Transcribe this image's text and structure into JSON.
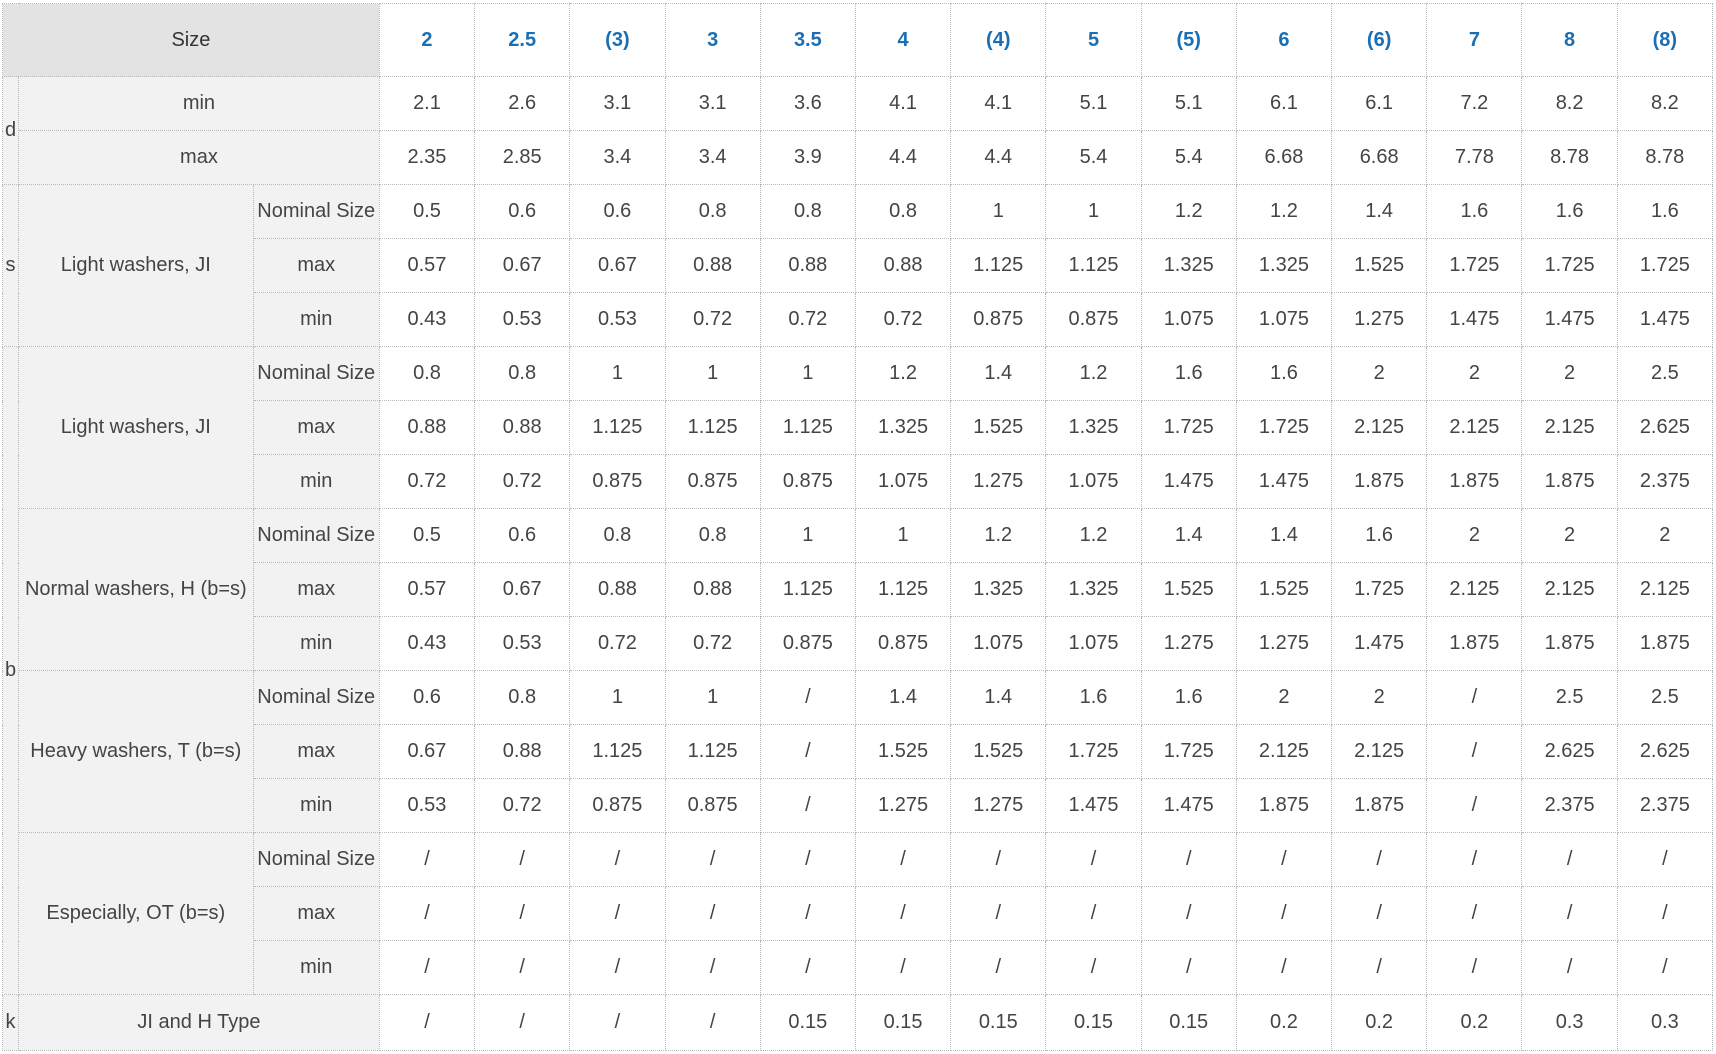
{
  "header": {
    "size_label": "Size",
    "columns": [
      "2",
      "2.5",
      "(3)",
      "3",
      "3.5",
      "4",
      "(4)",
      "5",
      "(5)",
      "6",
      "(6)",
      "7",
      "8",
      "(8)"
    ]
  },
  "d": {
    "symbol": "d",
    "rows": [
      {
        "label": "min",
        "values": [
          "2.1",
          "2.6",
          "3.1",
          "3.1",
          "3.6",
          "4.1",
          "4.1",
          "5.1",
          "5.1",
          "6.1",
          "6.1",
          "7.2",
          "8.2",
          "8.2"
        ]
      },
      {
        "label": "max",
        "values": [
          "2.35",
          "2.85",
          "3.4",
          "3.4",
          "3.9",
          "4.4",
          "4.4",
          "5.4",
          "5.4",
          "6.68",
          "6.68",
          "7.78",
          "8.78",
          "8.78"
        ]
      }
    ]
  },
  "s": {
    "symbol": "s",
    "group": "Light washers, JI",
    "rows": [
      {
        "label": "Nominal Size",
        "values": [
          "0.5",
          "0.6",
          "0.6",
          "0.8",
          "0.8",
          "0.8",
          "1",
          "1",
          "1.2",
          "1.2",
          "1.4",
          "1.6",
          "1.6",
          "1.6"
        ]
      },
      {
        "label": "max",
        "values": [
          "0.57",
          "0.67",
          "0.67",
          "0.88",
          "0.88",
          "0.88",
          "1.125",
          "1.125",
          "1.325",
          "1.325",
          "1.525",
          "1.725",
          "1.725",
          "1.725"
        ]
      },
      {
        "label": "min",
        "values": [
          "0.43",
          "0.53",
          "0.53",
          "0.72",
          "0.72",
          "0.72",
          "0.875",
          "0.875",
          "1.075",
          "1.075",
          "1.275",
          "1.475",
          "1.475",
          "1.475"
        ]
      }
    ]
  },
  "b": {
    "symbol": "b",
    "groups": [
      {
        "label": "Light washers, JI",
        "rows": [
          {
            "label": "Nominal Size",
            "values": [
              "0.8",
              "0.8",
              "1",
              "1",
              "1",
              "1.2",
              "1.4",
              "1.2",
              "1.6",
              "1.6",
              "2",
              "2",
              "2",
              "2.5"
            ]
          },
          {
            "label": "max",
            "values": [
              "0.88",
              "0.88",
              "1.125",
              "1.125",
              "1.125",
              "1.325",
              "1.525",
              "1.325",
              "1.725",
              "1.725",
              "2.125",
              "2.125",
              "2.125",
              "2.625"
            ]
          },
          {
            "label": "min",
            "values": [
              "0.72",
              "0.72",
              "0.875",
              "0.875",
              "0.875",
              "1.075",
              "1.275",
              "1.075",
              "1.475",
              "1.475",
              "1.875",
              "1.875",
              "1.875",
              "2.375"
            ]
          }
        ]
      },
      {
        "label": "Normal washers, H (b=s)",
        "rows": [
          {
            "label": "Nominal Size",
            "values": [
              "0.5",
              "0.6",
              "0.8",
              "0.8",
              "1",
              "1",
              "1.2",
              "1.2",
              "1.4",
              "1.4",
              "1.6",
              "2",
              "2",
              "2"
            ]
          },
          {
            "label": "max",
            "values": [
              "0.57",
              "0.67",
              "0.88",
              "0.88",
              "1.125",
              "1.125",
              "1.325",
              "1.325",
              "1.525",
              "1.525",
              "1.725",
              "2.125",
              "2.125",
              "2.125"
            ]
          },
          {
            "label": "min",
            "values": [
              "0.43",
              "0.53",
              "0.72",
              "0.72",
              "0.875",
              "0.875",
              "1.075",
              "1.075",
              "1.275",
              "1.275",
              "1.475",
              "1.875",
              "1.875",
              "1.875"
            ]
          }
        ]
      },
      {
        "label": "Heavy washers, T (b=s)",
        "rows": [
          {
            "label": "Nominal Size",
            "values": [
              "0.6",
              "0.8",
              "1",
              "1",
              "/",
              "1.4",
              "1.4",
              "1.6",
              "1.6",
              "2",
              "2",
              "/",
              "2.5",
              "2.5"
            ]
          },
          {
            "label": "max",
            "values": [
              "0.67",
              "0.88",
              "1.125",
              "1.125",
              "/",
              "1.525",
              "1.525",
              "1.725",
              "1.725",
              "2.125",
              "2.125",
              "/",
              "2.625",
              "2.625"
            ]
          },
          {
            "label": "min",
            "values": [
              "0.53",
              "0.72",
              "0.875",
              "0.875",
              "/",
              "1.275",
              "1.275",
              "1.475",
              "1.475",
              "1.875",
              "1.875",
              "/",
              "2.375",
              "2.375"
            ]
          }
        ]
      },
      {
        "label": "Especially, OT (b=s)",
        "rows": [
          {
            "label": "Nominal Size",
            "values": [
              "/",
              "/",
              "/",
              "/",
              "/",
              "/",
              "/",
              "/",
              "/",
              "/",
              "/",
              "/",
              "/",
              "/"
            ]
          },
          {
            "label": "max",
            "values": [
              "/",
              "/",
              "/",
              "/",
              "/",
              "/",
              "/",
              "/",
              "/",
              "/",
              "/",
              "/",
              "/",
              "/"
            ]
          },
          {
            "label": "min",
            "values": [
              "/",
              "/",
              "/",
              "/",
              "/",
              "/",
              "/",
              "/",
              "/",
              "/",
              "/",
              "/",
              "/",
              "/"
            ]
          }
        ]
      }
    ]
  },
  "k": {
    "symbol": "k",
    "label": "JI and H Type",
    "values": [
      "/",
      "/",
      "/",
      "/",
      "0.15",
      "0.15",
      "0.15",
      "0.15",
      "0.15",
      "0.2",
      "0.2",
      "0.2",
      "0.3",
      "0.3"
    ]
  }
}
